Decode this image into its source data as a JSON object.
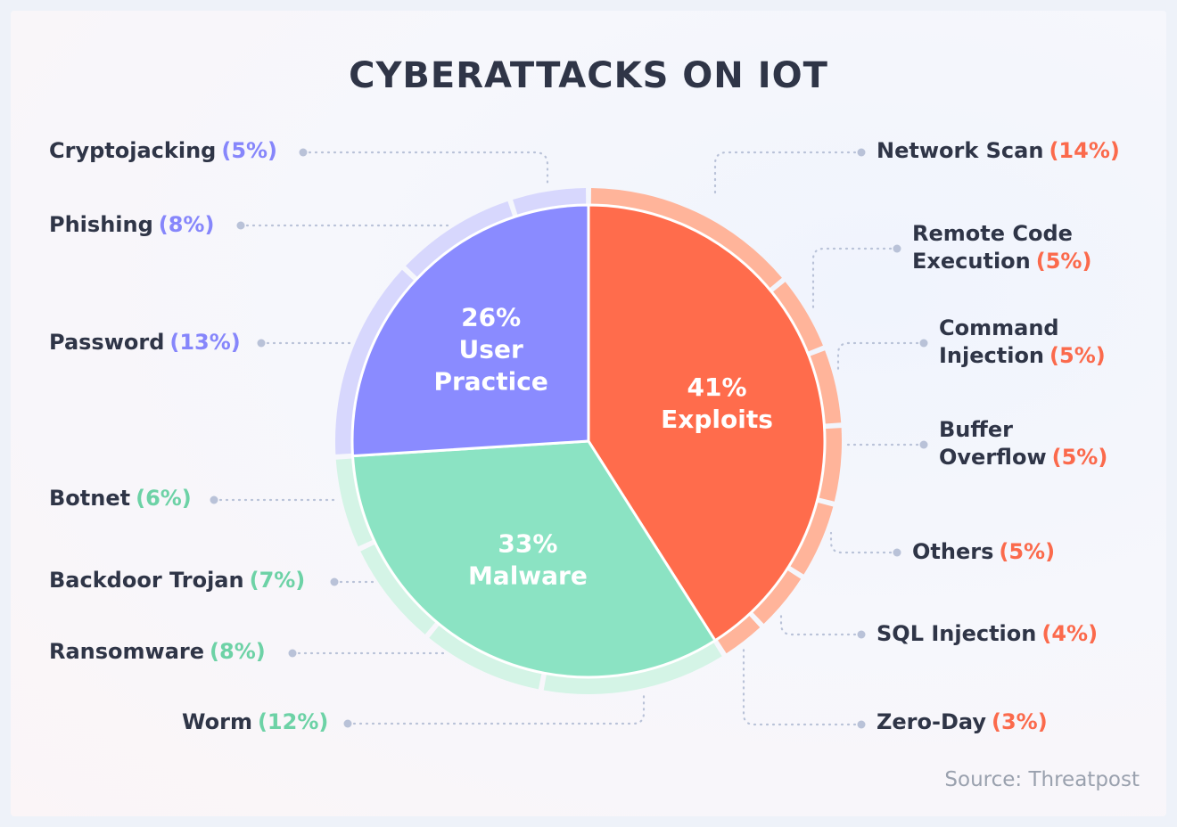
{
  "title": "CYBERATTACKS ON IOT",
  "source": "Source: Threatpost",
  "colors": {
    "exploits": "#ff6c4c",
    "exploits_ring": "#ffb49a",
    "malware": "#8be3c3",
    "malware_ring": "#d4f4e6",
    "user_practice": "#8a8bff",
    "user_practice_ring": "#d7d7fd"
  },
  "chart_data": {
    "type": "pie",
    "title": "CYBERATTACKS ON IOT",
    "categories": [
      {
        "name": "Exploits",
        "value": 41,
        "label_pct": "41%",
        "label_name": "Exploits",
        "color": "#ff6c4c",
        "ring": "#ffb49a"
      },
      {
        "name": "Malware",
        "value": 33,
        "label_pct": "33%",
        "label_name": "Malware",
        "color": "#8be3c3",
        "ring": "#d4f4e6"
      },
      {
        "name": "User Practice",
        "value": 26,
        "label_pct": "26%",
        "label_name_1": "User",
        "label_name_2": "Practice",
        "color": "#8a8bff",
        "ring": "#d7d7fd"
      }
    ],
    "subcategories": [
      {
        "name": "Network Scan",
        "value": 14,
        "pct": "(14%)",
        "group": "Exploits"
      },
      {
        "name": "Remote Code Execution",
        "line1": "Remote Code",
        "line2": "Execution",
        "value": 5,
        "pct": "(5%)",
        "group": "Exploits"
      },
      {
        "name": "Command Injection",
        "line1": "Command",
        "line2": "Injection",
        "value": 5,
        "pct": "(5%)",
        "group": "Exploits"
      },
      {
        "name": "Buffer Overflow",
        "line1": "Buffer",
        "line2": "Overflow",
        "value": 5,
        "pct": "(5%)",
        "group": "Exploits"
      },
      {
        "name": "Others",
        "value": 5,
        "pct": "(5%)",
        "group": "Exploits"
      },
      {
        "name": "SQL Injection",
        "value": 4,
        "pct": "(4%)",
        "group": "Exploits"
      },
      {
        "name": "Zero-Day",
        "value": 3,
        "pct": "(3%)",
        "group": "Exploits"
      },
      {
        "name": "Worm",
        "value": 12,
        "pct": "(12%)",
        "group": "Malware"
      },
      {
        "name": "Ransomware",
        "value": 8,
        "pct": "(8%)",
        "group": "Malware"
      },
      {
        "name": "Backdoor Trojan",
        "value": 7,
        "pct": "(7%)",
        "group": "Malware"
      },
      {
        "name": "Botnet",
        "value": 6,
        "pct": "(6%)",
        "group": "Malware"
      },
      {
        "name": "Password",
        "value": 13,
        "pct": "(13%)",
        "group": "User Practice"
      },
      {
        "name": "Phishing",
        "value": 8,
        "pct": "(8%)",
        "group": "User Practice"
      },
      {
        "name": "Cryptojacking",
        "value": 5,
        "pct": "(5%)",
        "group": "User Practice"
      }
    ]
  }
}
